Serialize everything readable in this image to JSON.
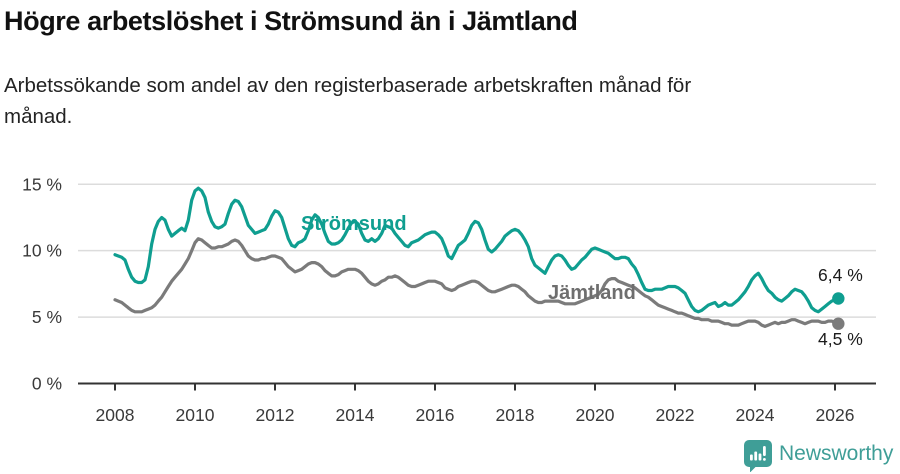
{
  "header": {
    "title": "Högre arbetslöshet i Strömsund än i Jämtland",
    "subtitle": "Arbetssökande som andel av den registerbaserade arbetskraften månad för månad.",
    "subtitle_line1": "Arbetssökande som andel av den registerbaserade arbetskraften månad för",
    "subtitle_line2": "månad."
  },
  "chart_data": {
    "type": "line",
    "title": "Högre arbetslöshet i Strömsund än i Jämtland",
    "xlabel": "",
    "ylabel": "",
    "grid": "horizontal",
    "legend_position": "inline-labels-on-lines",
    "x_unit": "year-month",
    "x_start": 2008.0,
    "x_step": 0.0833333,
    "xlim": [
      2007.1,
      2027.0
    ],
    "ylim": [
      0,
      15.8
    ],
    "x_ticks": [
      "2008",
      "2010",
      "2012",
      "2014",
      "2016",
      "2018",
      "2020",
      "2022",
      "2024",
      "2026"
    ],
    "x_tick_years": [
      2008,
      2010,
      2012,
      2014,
      2016,
      2018,
      2020,
      2022,
      2024,
      2026
    ],
    "y_ticks": [
      {
        "value": 0,
        "label": "0 %"
      },
      {
        "value": 5,
        "label": "5 %"
      },
      {
        "value": 10,
        "label": "10 %"
      },
      {
        "value": 15,
        "label": "15 %"
      }
    ],
    "series": [
      {
        "name": "Strömsund",
        "color": "#0f9e90",
        "end_label": "6,4 %",
        "end_value": 6.4,
        "values": [
          9.7,
          9.6,
          9.5,
          9.3,
          8.6,
          8.0,
          7.7,
          7.6,
          7.6,
          7.8,
          8.8,
          10.5,
          11.6,
          12.2,
          12.5,
          12.3,
          11.6,
          11.1,
          11.3,
          11.5,
          11.7,
          11.5,
          12.3,
          13.8,
          14.5,
          14.7,
          14.5,
          14.0,
          12.9,
          12.2,
          11.8,
          11.7,
          11.8,
          12.0,
          12.8,
          13.5,
          13.8,
          13.7,
          13.3,
          12.6,
          11.9,
          11.6,
          11.3,
          11.4,
          11.5,
          11.6,
          12.0,
          12.6,
          13.0,
          12.9,
          12.5,
          11.7,
          10.9,
          10.4,
          10.3,
          10.6,
          10.7,
          10.9,
          11.5,
          12.3,
          12.7,
          12.5,
          12.0,
          11.3,
          10.7,
          10.5,
          10.5,
          10.6,
          10.8,
          11.2,
          11.7,
          12.1,
          12.2,
          12.0,
          11.3,
          10.8,
          10.7,
          10.9,
          10.7,
          10.9,
          11.3,
          11.9,
          11.8,
          11.7,
          11.3,
          11.0,
          10.7,
          10.4,
          10.3,
          10.6,
          10.7,
          10.8,
          11.0,
          11.2,
          11.3,
          11.4,
          11.4,
          11.2,
          10.9,
          10.3,
          9.6,
          9.4,
          9.9,
          10.4,
          10.6,
          10.8,
          11.3,
          11.9,
          12.2,
          12.1,
          11.6,
          10.8,
          10.1,
          9.9,
          10.1,
          10.4,
          10.7,
          11.1,
          11.3,
          11.5,
          11.6,
          11.5,
          11.2,
          10.8,
          10.3,
          9.4,
          8.9,
          8.7,
          8.5,
          8.3,
          8.8,
          9.3,
          9.6,
          9.7,
          9.6,
          9.3,
          8.9,
          8.6,
          8.7,
          9.0,
          9.3,
          9.5,
          9.8,
          10.1,
          10.2,
          10.1,
          10.0,
          9.9,
          9.8,
          9.6,
          9.4,
          9.4,
          9.5,
          9.5,
          9.4,
          9.0,
          8.7,
          8.2,
          7.6,
          7.1,
          7.0,
          7.0,
          7.1,
          7.1,
          7.1,
          7.2,
          7.3,
          7.3,
          7.3,
          7.2,
          7.0,
          6.8,
          6.3,
          5.8,
          5.5,
          5.4,
          5.5,
          5.7,
          5.9,
          6.0,
          6.1,
          5.8,
          5.9,
          6.1,
          5.9,
          5.9,
          6.1,
          6.3,
          6.6,
          6.9,
          7.3,
          7.8,
          8.1,
          8.3,
          7.9,
          7.4,
          7.0,
          6.8,
          6.5,
          6.3,
          6.2,
          6.4,
          6.6,
          6.9,
          7.1,
          7.0,
          6.9,
          6.6,
          6.2,
          5.7,
          5.5,
          5.4,
          5.6,
          5.8,
          6.0,
          6.2,
          6.3,
          6.4
        ]
      },
      {
        "name": "Jämtland",
        "color": "#7b7b7b",
        "label_color": "#6e6e6e",
        "end_label": "4,5 %",
        "end_value": 4.5,
        "values": [
          6.3,
          6.2,
          6.1,
          5.9,
          5.7,
          5.5,
          5.4,
          5.4,
          5.4,
          5.5,
          5.6,
          5.7,
          5.9,
          6.2,
          6.5,
          6.9,
          7.3,
          7.7,
          8.0,
          8.3,
          8.6,
          9.0,
          9.4,
          10.0,
          10.6,
          10.9,
          10.8,
          10.6,
          10.4,
          10.2,
          10.2,
          10.3,
          10.3,
          10.4,
          10.5,
          10.7,
          10.8,
          10.7,
          10.4,
          10.0,
          9.6,
          9.4,
          9.3,
          9.3,
          9.4,
          9.4,
          9.5,
          9.6,
          9.6,
          9.5,
          9.4,
          9.1,
          8.8,
          8.6,
          8.4,
          8.5,
          8.6,
          8.8,
          9.0,
          9.1,
          9.1,
          9.0,
          8.8,
          8.5,
          8.3,
          8.1,
          8.1,
          8.2,
          8.4,
          8.5,
          8.6,
          8.6,
          8.6,
          8.5,
          8.3,
          8.0,
          7.7,
          7.5,
          7.4,
          7.5,
          7.7,
          7.8,
          8.0,
          8.0,
          8.1,
          8.0,
          7.8,
          7.6,
          7.4,
          7.3,
          7.3,
          7.4,
          7.5,
          7.6,
          7.7,
          7.7,
          7.7,
          7.6,
          7.5,
          7.2,
          7.1,
          7.0,
          7.1,
          7.3,
          7.4,
          7.5,
          7.6,
          7.7,
          7.7,
          7.6,
          7.4,
          7.2,
          7.0,
          6.9,
          6.9,
          7.0,
          7.1,
          7.2,
          7.3,
          7.4,
          7.4,
          7.3,
          7.1,
          6.9,
          6.6,
          6.4,
          6.2,
          6.1,
          6.1,
          6.2,
          6.2,
          6.2,
          6.2,
          6.2,
          6.1,
          6.0,
          6.0,
          6.0,
          6.0,
          6.1,
          6.2,
          6.3,
          6.4,
          6.5,
          6.6,
          6.7,
          7.0,
          7.5,
          7.8,
          7.9,
          7.9,
          7.7,
          7.6,
          7.5,
          7.4,
          7.3,
          7.2,
          7.0,
          6.8,
          6.6,
          6.5,
          6.3,
          6.1,
          5.9,
          5.8,
          5.7,
          5.6,
          5.5,
          5.4,
          5.3,
          5.3,
          5.2,
          5.1,
          5.0,
          4.9,
          4.9,
          4.8,
          4.8,
          4.8,
          4.7,
          4.7,
          4.7,
          4.6,
          4.5,
          4.5,
          4.4,
          4.4,
          4.4,
          4.5,
          4.6,
          4.7,
          4.7,
          4.7,
          4.6,
          4.4,
          4.3,
          4.4,
          4.5,
          4.6,
          4.5,
          4.6,
          4.6,
          4.7,
          4.8,
          4.8,
          4.7,
          4.6,
          4.5,
          4.6,
          4.7,
          4.7,
          4.7,
          4.6,
          4.6,
          4.7,
          4.7,
          4.6,
          4.5
        ]
      }
    ]
  },
  "colors": {
    "accent_teal": "#0f9e90",
    "line_gray": "#7b7b7b",
    "axis_text": "#3a3a3a",
    "gridline": "#dcdcdc",
    "axis_line": "#333333",
    "brand_teal": "#3f9e97"
  },
  "footer": {
    "brand": "Newsworthy"
  }
}
